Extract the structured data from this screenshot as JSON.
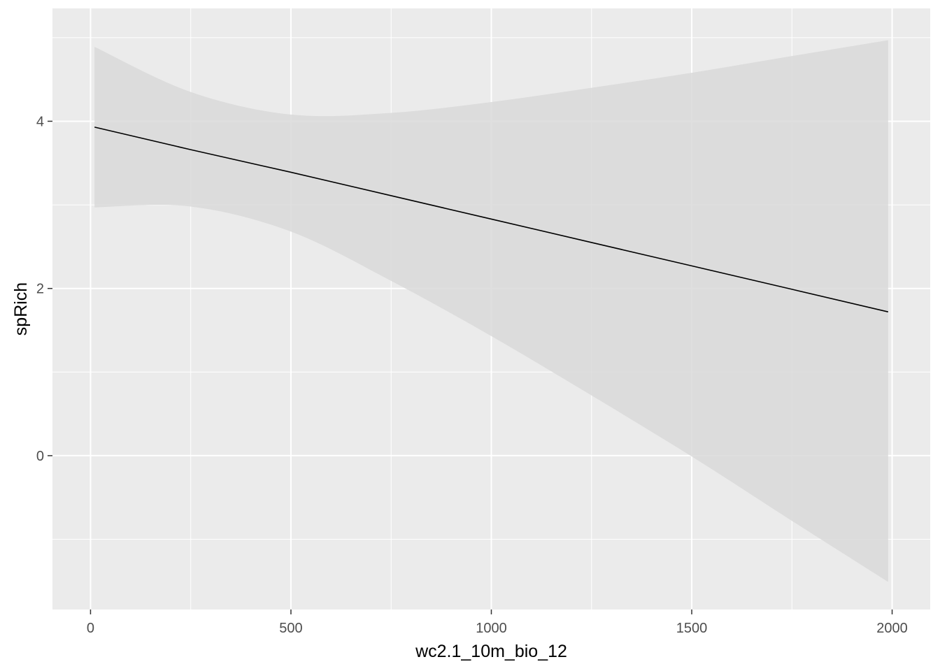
{
  "chart_data": {
    "type": "line",
    "title": "",
    "xlabel": "wc2.1_10m_bio_12",
    "ylabel": "spRich",
    "xlim": [
      -95,
      2095
    ],
    "ylim": [
      -1.84,
      5.35
    ],
    "x_ticks": [
      0,
      500,
      1000,
      1500,
      2000
    ],
    "x_tick_labels": [
      "0",
      "500",
      "1000",
      "1500",
      "2000"
    ],
    "y_ticks": [
      0,
      2,
      4
    ],
    "y_tick_labels": [
      "0",
      "2",
      "4"
    ],
    "x_minor": [
      250,
      750,
      1250,
      1750
    ],
    "y_minor": [
      -1,
      1,
      3,
      5
    ],
    "grid": true,
    "legend": "none",
    "colors": {
      "panel": "#ebebeb",
      "grid": "#ffffff",
      "ribbon": "#d9d9d9",
      "line": "#000000",
      "tick": "#333333"
    },
    "series": [
      {
        "x": [
          10,
          250,
          500,
          750,
          1000,
          1250,
          1500,
          1750,
          1990
        ],
        "y": [
          3.93,
          3.66,
          3.39,
          3.11,
          2.83,
          2.55,
          2.27,
          1.99,
          1.72
        ],
        "ymin": [
          2.97,
          2.98,
          2.68,
          2.09,
          1.43,
          0.72,
          -0.01,
          -0.78,
          -1.51
        ],
        "ymax": [
          4.89,
          4.35,
          4.08,
          4.1,
          4.23,
          4.4,
          4.58,
          4.78,
          4.97
        ]
      }
    ]
  }
}
